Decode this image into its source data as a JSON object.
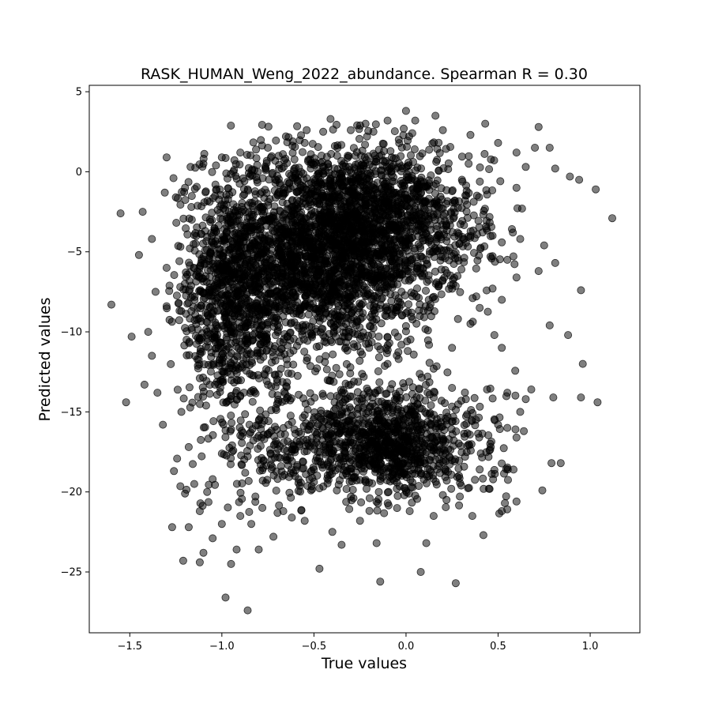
{
  "chart_data": {
    "type": "scatter",
    "title": "RASK_HUMAN_Weng_2022_abundance. Spearman R = 0.30",
    "xlabel": "True values",
    "ylabel": "Predicted values",
    "xlim": [
      -1.72,
      1.27
    ],
    "ylim": [
      -28.8,
      5.4
    ],
    "x_ticks": [
      -1.5,
      -1.0,
      -0.5,
      0.0,
      0.5,
      1.0
    ],
    "x_tick_labels": [
      "−1.5",
      "−1.0",
      "−0.5",
      "0.0",
      "0.5",
      "1.0"
    ],
    "y_ticks": [
      -25,
      -20,
      -15,
      -10,
      -5,
      0,
      5
    ],
    "y_tick_labels": [
      "−25",
      "−20",
      "−15",
      "−10",
      "−5",
      "0",
      "5"
    ],
    "grid": false,
    "marker_color": "#000000",
    "marker_alpha": 0.5,
    "points": [
      {
        "x": -1.6,
        "y": -8.3
      },
      {
        "x": -1.55,
        "y": -2.6
      },
      {
        "x": -1.52,
        "y": -14.4
      },
      {
        "x": -1.49,
        "y": -10.3
      },
      {
        "x": -1.45,
        "y": -5.2
      },
      {
        "x": -1.43,
        "y": -2.5
      },
      {
        "x": -1.42,
        "y": -13.3
      },
      {
        "x": -1.3,
        "y": 0.9
      },
      {
        "x": -1.27,
        "y": -22.2
      },
      {
        "x": -1.26,
        "y": -18.7
      },
      {
        "x": -1.21,
        "y": -24.3
      },
      {
        "x": -1.2,
        "y": -20.1
      },
      {
        "x": -1.18,
        "y": -22.2
      },
      {
        "x": -1.17,
        "y": 0.3
      },
      {
        "x": -1.12,
        "y": -24.4
      },
      {
        "x": -1.1,
        "y": -23.8
      },
      {
        "x": -1.05,
        "y": -22.9
      },
      {
        "x": -1.0,
        "y": -22.0
      },
      {
        "x": -0.98,
        "y": -26.6
      },
      {
        "x": -0.95,
        "y": -24.5
      },
      {
        "x": -0.92,
        "y": -23.6
      },
      {
        "x": -0.86,
        "y": -27.4
      },
      {
        "x": -0.84,
        "y": -22.0
      },
      {
        "x": -0.8,
        "y": -23.6
      },
      {
        "x": -0.72,
        "y": -22.8
      },
      {
        "x": -0.47,
        "y": -24.8
      },
      {
        "x": -0.35,
        "y": -23.3
      },
      {
        "x": -0.16,
        "y": -23.2
      },
      {
        "x": -0.14,
        "y": -25.6
      },
      {
        "x": 0.08,
        "y": -25.0
      },
      {
        "x": 0.11,
        "y": -23.2
      },
      {
        "x": 0.27,
        "y": -25.7
      },
      {
        "x": 0.42,
        "y": -22.7
      },
      {
        "x": 0.74,
        "y": -19.9
      },
      {
        "x": 0.79,
        "y": -18.2
      },
      {
        "x": 0.84,
        "y": -18.2
      },
      {
        "x": 0.8,
        "y": -14.1
      },
      {
        "x": 0.95,
        "y": -14.1
      },
      {
        "x": 1.04,
        "y": -14.4
      },
      {
        "x": 0.96,
        "y": -12.0
      },
      {
        "x": 0.88,
        "y": -10.2
      },
      {
        "x": 0.78,
        "y": -9.6
      },
      {
        "x": 0.95,
        "y": -7.4
      },
      {
        "x": 1.03,
        "y": -1.1
      },
      {
        "x": 1.12,
        "y": -2.9
      },
      {
        "x": 0.89,
        "y": -0.3
      },
      {
        "x": 0.94,
        "y": -0.5
      },
      {
        "x": 0.81,
        "y": 0.2
      },
      {
        "x": 0.72,
        "y": 2.8
      },
      {
        "x": 0.78,
        "y": 1.5
      },
      {
        "x": 0.7,
        "y": 1.5
      },
      {
        "x": 0.43,
        "y": 3.0
      },
      {
        "x": 0.16,
        "y": 3.5
      },
      {
        "x": 0.0,
        "y": 3.8
      },
      {
        "x": -0.41,
        "y": 3.3
      },
      {
        "x": 0.75,
        "y": -4.6
      },
      {
        "x": 0.81,
        "y": -5.7
      },
      {
        "x": 0.72,
        "y": -6.2
      },
      {
        "x": 0.6,
        "y": -6.6
      },
      {
        "x": 0.52,
        "y": -8.0
      },
      {
        "x": 0.48,
        "y": -10.2
      },
      {
        "x": 0.52,
        "y": -11.0
      },
      {
        "x": 0.55,
        "y": -16.0
      },
      {
        "x": 0.6,
        "y": -16.6
      },
      {
        "x": 0.64,
        "y": -16.2
      },
      {
        "x": 0.6,
        "y": -20.6
      },
      {
        "x": 0.52,
        "y": -21.2
      },
      {
        "x": 0.36,
        "y": -21.5
      },
      {
        "x": 0.22,
        "y": -20.5
      },
      {
        "x": 0.15,
        "y": -21.5
      },
      {
        "x": 0.02,
        "y": -21.2
      },
      {
        "x": -0.25,
        "y": -21.8
      },
      {
        "x": -0.4,
        "y": -22.5
      },
      {
        "x": -0.55,
        "y": -21.8
      },
      {
        "x": -0.62,
        "y": -21.6
      },
      {
        "x": -0.78,
        "y": -21.0
      },
      {
        "x": -0.9,
        "y": -21.5
      },
      {
        "x": -1.12,
        "y": -21.2
      },
      {
        "x": -1.08,
        "y": -20.0
      },
      {
        "x": -1.05,
        "y": -19.2
      },
      {
        "x": -1.15,
        "y": -19.5
      },
      {
        "x": -1.32,
        "y": -15.8
      },
      {
        "x": -1.35,
        "y": -13.8
      },
      {
        "x": -1.38,
        "y": -11.5
      },
      {
        "x": -1.4,
        "y": -10.0
      },
      {
        "x": -1.36,
        "y": -7.5
      },
      {
        "x": -1.3,
        "y": -6.0
      },
      {
        "x": -1.38,
        "y": -4.2
      },
      {
        "x": -1.31,
        "y": -1.3
      },
      {
        "x": -1.25,
        "y": -1.6
      },
      {
        "x": -1.2,
        "y": -1.0
      },
      {
        "x": -1.1,
        "y": 0.5
      },
      {
        "x": -1.0,
        "y": 0.9
      },
      {
        "x": -0.9,
        "y": 1.2
      },
      {
        "x": -0.75,
        "y": 1.5
      },
      {
        "x": -0.55,
        "y": 1.8
      },
      {
        "x": -0.45,
        "y": 2.5
      },
      {
        "x": -0.3,
        "y": 2.6
      },
      {
        "x": -0.22,
        "y": 3.0
      },
      {
        "x": -0.1,
        "y": 3.2
      },
      {
        "x": 0.05,
        "y": 3.2
      },
      {
        "x": 0.2,
        "y": 2.6
      },
      {
        "x": 0.35,
        "y": 2.3
      },
      {
        "x": 0.5,
        "y": 1.8
      },
      {
        "x": 0.6,
        "y": 1.2
      },
      {
        "x": 0.65,
        "y": 0.3
      },
      {
        "x": 0.6,
        "y": -1.0
      },
      {
        "x": 0.63,
        "y": -2.3
      },
      {
        "x": 0.58,
        "y": -3.8
      },
      {
        "x": 0.62,
        "y": -4.2
      },
      {
        "x": 0.55,
        "y": -5.5
      },
      {
        "x": 0.47,
        "y": -7.3
      },
      {
        "x": 0.4,
        "y": -8.5
      },
      {
        "x": 0.35,
        "y": -9.5
      },
      {
        "x": 0.25,
        "y": -11.0
      },
      {
        "x": 0.15,
        "y": -12.3
      },
      {
        "x": 0.44,
        "y": -13.6
      },
      {
        "x": 0.3,
        "y": -14.3
      },
      {
        "x": 0.38,
        "y": -15.5
      },
      {
        "x": 0.46,
        "y": -17.2
      },
      {
        "x": 0.4,
        "y": -18.6
      },
      {
        "x": 0.3,
        "y": -19.6
      },
      {
        "x": 0.45,
        "y": -19.8
      },
      {
        "x": -0.65,
        "y": -18.0
      },
      {
        "x": -0.8,
        "y": -16.5
      },
      {
        "x": -1.0,
        "y": -17.6
      },
      {
        "x": -1.18,
        "y": -17.2
      },
      {
        "x": -1.22,
        "y": -15.0
      },
      {
        "x": -0.2,
        "y": -11.0
      },
      {
        "x": -0.1,
        "y": -12.0
      },
      {
        "x": -0.3,
        "y": -13.3
      },
      {
        "x": -0.05,
        "y": -14.0
      },
      {
        "x": 0.05,
        "y": -15.0
      },
      {
        "x": -0.15,
        "y": -16.5
      },
      {
        "x": -0.35,
        "y": -17.8
      },
      {
        "x": -0.5,
        "y": -18.6
      },
      {
        "x": 0.1,
        "y": -18.2
      },
      {
        "x": -0.05,
        "y": -19.8
      },
      {
        "x": -0.45,
        "y": -14.0
      },
      {
        "x": -0.55,
        "y": -15.2
      },
      {
        "x": -0.7,
        "y": -14.5
      },
      {
        "x": -0.85,
        "y": -15.8
      },
      {
        "x": -0.95,
        "y": -14.0
      },
      {
        "x": 0.2,
        "y": -16.8
      },
      {
        "x": 0.25,
        "y": -13.5
      },
      {
        "x": 0.55,
        "y": -13.8
      },
      {
        "x": 0.65,
        "y": -14.2
      },
      {
        "x": 0.68,
        "y": -13.6
      },
      {
        "x": 0.62,
        "y": -15.0
      },
      {
        "x": 0.5,
        "y": -15.8
      }
    ],
    "dense_regions": [
      {
        "cx": -0.45,
        "cy": -5.0,
        "sx": 0.32,
        "sy": 3.3,
        "n": 2600,
        "clip": [
          -1.25,
          0.62,
          -14.0,
          3.0
        ]
      },
      {
        "cx": -0.95,
        "cy": -8.5,
        "sx": 0.16,
        "sy": 3.5,
        "n": 800,
        "clip": [
          -1.3,
          -0.6,
          -14.5,
          0.5
        ]
      },
      {
        "cx": -0.05,
        "cy": -2.8,
        "sx": 0.25,
        "sy": 2.2,
        "n": 700,
        "clip": [
          -0.6,
          0.65,
          -10.0,
          3.0
        ]
      },
      {
        "cx": -0.25,
        "cy": -17.0,
        "sx": 0.42,
        "sy": 2.1,
        "n": 900,
        "clip": [
          -1.25,
          0.62,
          -21.5,
          -12.0
        ]
      },
      {
        "cx": -0.1,
        "cy": -16.8,
        "sx": 0.18,
        "sy": 1.3,
        "n": 450,
        "clip": [
          -0.6,
          0.35,
          -20.0,
          -13.5
        ]
      }
    ]
  }
}
